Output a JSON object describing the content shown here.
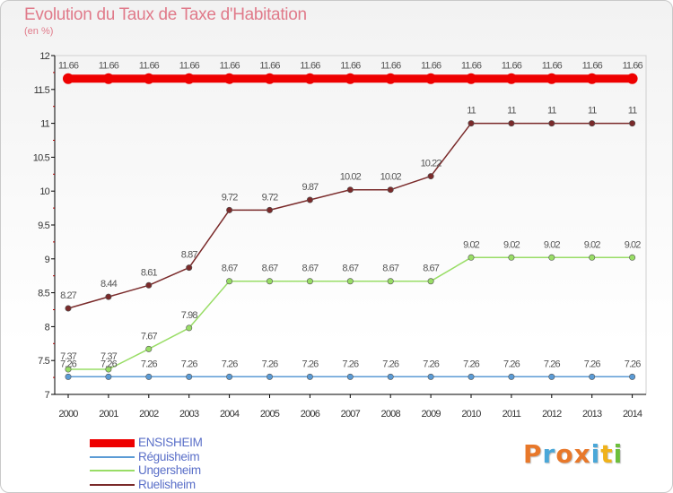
{
  "header": {
    "title": "Evolution du Taux de Taxe d'Habitation",
    "subtitle": "(en %)"
  },
  "logo": {
    "text": "Proxiti",
    "letter_colors": [
      "#e8782a",
      "#4aa7d8",
      "#e8782a",
      "#e8782a",
      "#4aa7d8",
      "#f0b21a",
      "#6cbf3c"
    ]
  },
  "chart_data": {
    "type": "line",
    "title": "Evolution du Taux de Taxe d'Habitation",
    "subtitle": "(en %)",
    "x": [
      2000,
      2001,
      2002,
      2003,
      2004,
      2005,
      2006,
      2007,
      2008,
      2009,
      2010,
      2011,
      2012,
      2013,
      2014
    ],
    "ylim": [
      7,
      12
    ],
    "yticks": [
      7,
      7.5,
      8,
      8.5,
      9,
      9.5,
      10,
      10.5,
      11,
      11.5,
      12
    ],
    "ytick_labels": [
      "7",
      "7.5",
      "8",
      "8.5",
      "9",
      "9.5",
      "10",
      "10.5",
      "11",
      "11.5",
      "12"
    ],
    "grid": false,
    "legend_position": "bottom-left",
    "series": [
      {
        "name": "ENSISHEIM",
        "color": "#ee0000",
        "values": [
          11.66,
          11.66,
          11.66,
          11.66,
          11.66,
          11.66,
          11.66,
          11.66,
          11.66,
          11.66,
          11.66,
          11.66,
          11.66,
          11.66,
          11.66
        ],
        "labels": [
          "11.66",
          "11.66",
          "11.66",
          "11.66",
          "11.66",
          "11.66",
          "11.66",
          "11.66",
          "11.66",
          "11.66",
          "11.66",
          "11.66",
          "11.66",
          "11.66",
          "11.66"
        ]
      },
      {
        "name": "Réguisheim",
        "color": "#5b9bd5",
        "values": [
          7.26,
          7.26,
          7.26,
          7.26,
          7.26,
          7.26,
          7.26,
          7.26,
          7.26,
          7.26,
          7.26,
          7.26,
          7.26,
          7.26,
          7.26
        ],
        "labels": [
          "7.26",
          "7.26",
          "7.26",
          "7.26",
          "7.26",
          "7.26",
          "7.26",
          "7.26",
          "7.26",
          "7.26",
          "7.26",
          "7.26",
          "7.26",
          "7.26",
          "7.26"
        ]
      },
      {
        "name": "Ungersheim",
        "color": "#99dd66",
        "values": [
          7.37,
          7.37,
          7.67,
          7.98,
          8.67,
          8.67,
          8.67,
          8.67,
          8.67,
          8.67,
          9.02,
          9.02,
          9.02,
          9.02,
          9.02
        ],
        "labels": [
          "7.37",
          "7.37",
          "7.67",
          "7.98",
          "8.67",
          "8.67",
          "8.67",
          "8.67",
          "8.67",
          "8.67",
          "9.02",
          "9.02",
          "9.02",
          "9.02",
          "9.02"
        ]
      },
      {
        "name": "Ruelisheim",
        "color": "#7a2a2a",
        "values": [
          8.27,
          8.44,
          8.61,
          8.87,
          9.72,
          9.72,
          9.87,
          10.02,
          10.02,
          10.22,
          11,
          11,
          11,
          11,
          11
        ],
        "labels": [
          "8.27",
          "8.44",
          "8.61",
          "8.87",
          "9.72",
          "9.72",
          "9.87",
          "10.02",
          "10.02",
          "10.22",
          "11",
          "11",
          "11",
          "11",
          "11"
        ]
      }
    ]
  }
}
